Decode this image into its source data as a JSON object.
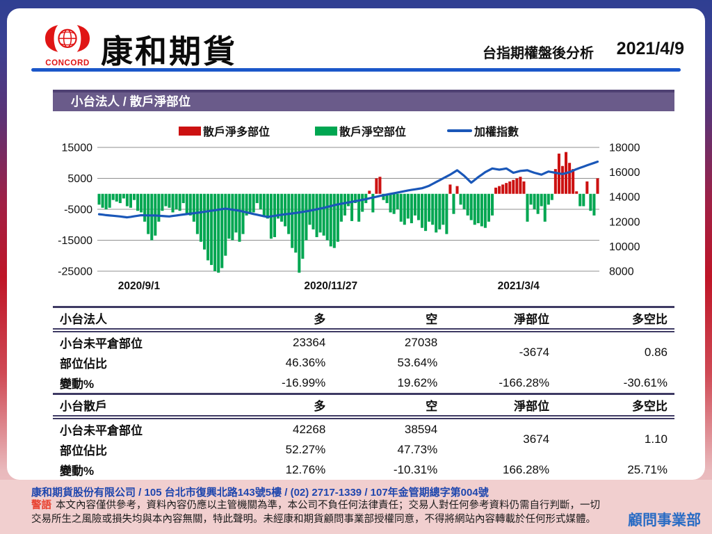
{
  "header": {
    "brand": "康和期貨",
    "logo_text": "CONCORD",
    "subtitle": "台指期權盤後分析",
    "date": "2021/4/9"
  },
  "banner": {
    "title": "小台法人 / 散戶淨部位"
  },
  "chart_data": {
    "type": "bar",
    "subtype": "dual-axis bar + line combo",
    "legend": [
      {
        "label": "散戶淨多部位",
        "type": "bar",
        "color": "#cc1111"
      },
      {
        "label": "散戶淨空部位",
        "type": "bar",
        "color": "#00a651"
      },
      {
        "label": "加權指數",
        "type": "line",
        "color": "#1a57b8"
      }
    ],
    "left_axis": {
      "ticks": [
        15000,
        5000,
        -5000,
        -15000,
        -25000
      ],
      "min": -25000,
      "max": 15000
    },
    "right_axis": {
      "ticks": [
        18000,
        16000,
        14000,
        12000,
        10000,
        8000
      ],
      "min": 8000,
      "max": 18000
    },
    "x_ticks": [
      {
        "label": "2020/9/1",
        "pos": 0.083
      },
      {
        "label": "2020/11/27",
        "pos": 0.465
      },
      {
        "label": "2021/3/4",
        "pos": 0.839
      }
    ],
    "grid": true,
    "bars": [
      -3500,
      -4500,
      -5000,
      -4500,
      -2000,
      -2500,
      -3000,
      -1500,
      -4000,
      -4500,
      -2000,
      -5500,
      -6000,
      -9000,
      -13000,
      -15000,
      -13500,
      -9000,
      -5500,
      -4000,
      -4500,
      -6000,
      -5000,
      -5500,
      -3000,
      -6500,
      -7000,
      -9000,
      -13000,
      -15500,
      -18000,
      -21500,
      -23000,
      -25000,
      -25500,
      -24000,
      -20000,
      -14500,
      -15000,
      -12500,
      -15500,
      -13000,
      -7000,
      -6500,
      -6000,
      -3000,
      -5000,
      -7500,
      -8000,
      -14500,
      -14000,
      -8000,
      -9000,
      -10500,
      -13000,
      -17500,
      -19000,
      -25500,
      -21000,
      -15000,
      -10000,
      -11500,
      -14000,
      -12500,
      -13500,
      -15000,
      -17000,
      -17500,
      -15500,
      -9000,
      -7000,
      -4000,
      -8800,
      -3000,
      -9000,
      -5800,
      -3000,
      1000,
      -6000,
      5000,
      5500,
      -2000,
      -3000,
      -6000,
      -6500,
      -5000,
      -9000,
      -10000,
      -8000,
      -9500,
      -7000,
      -8500,
      -11000,
      -12000,
      -9000,
      -10000,
      -12500,
      -11500,
      -10000,
      -13000,
      3000,
      -6500,
      2500,
      -3500,
      -5000,
      -7000,
      -8500,
      -10000,
      -9500,
      -10500,
      -11000,
      -9000,
      -7000,
      2000,
      2500,
      3000,
      3500,
      4000,
      4500,
      5000,
      5500,
      4000,
      -9000,
      -3500,
      -5000,
      -6500,
      -4000,
      -9000,
      -3500,
      -2000,
      8000,
      13000,
      9000,
      13500,
      10000,
      8000,
      800,
      -4000,
      -4000,
      4000,
      -5500,
      -7000,
      5000
    ],
    "line": [
      12600,
      12570,
      12530,
      12500,
      12480,
      12450,
      12420,
      12380,
      12350,
      12390,
      12430,
      12480,
      12520,
      12510,
      12505,
      12500,
      12500,
      12480,
      12460,
      12440,
      12420,
      12460,
      12500,
      12540,
      12580,
      12615,
      12650,
      12685,
      12720,
      12760,
      12800,
      12840,
      12880,
      12920,
      12965,
      13010,
      13050,
      13010,
      12965,
      12925,
      12880,
      12815,
      12750,
      12685,
      12620,
      12560,
      12500,
      12440,
      12380,
      12425,
      12470,
      12515,
      12560,
      12595,
      12630,
      12665,
      12700,
      12745,
      12790,
      12835,
      12880,
      12940,
      13000,
      13060,
      13120,
      13190,
      13260,
      13330,
      13400,
      13450,
      13500,
      13550,
      13600,
      13655,
      13710,
      13765,
      13820,
      13885,
      13950,
      14015,
      14080,
      14135,
      14190,
      14245,
      14300,
      14355,
      14410,
      14465,
      14520,
      14565,
      14610,
      14655,
      14700,
      14800,
      14900,
      15050,
      15200,
      15350,
      15500,
      15650,
      15800,
      15975,
      16150,
      15925,
      15700,
      15425,
      15150,
      15375,
      15600,
      15800,
      16000,
      16150,
      16300,
      16250,
      16200,
      16250,
      16300,
      16125,
      15950,
      16025,
      16100,
      16125,
      16150,
      16050,
      15950,
      15875,
      15800,
      15925,
      16050,
      16000,
      15950,
      15900,
      15850,
      15925,
      16000,
      16125,
      16250,
      16350,
      16450,
      16550,
      16650,
      16750,
      16850
    ]
  },
  "tables": [
    {
      "header": [
        "小台法人",
        "多",
        "空",
        "淨部位",
        "多空比"
      ],
      "net": "-3674",
      "ratio": "0.86",
      "rows": [
        {
          "label": "小台未平倉部位",
          "long": "23364",
          "short": "27038"
        },
        {
          "label": "部位佔比",
          "long": "46.36%",
          "short": "53.64%"
        },
        {
          "label": "變動%",
          "long": "-16.99%",
          "short": "19.62%",
          "net": "-166.28%",
          "ratio": "-30.61%"
        }
      ]
    },
    {
      "header": [
        "小台散戶",
        "多",
        "空",
        "淨部位",
        "多空比"
      ],
      "net": "3674",
      "ratio": "1.10",
      "rows": [
        {
          "label": "小台未平倉部位",
          "long": "42268",
          "short": "38594"
        },
        {
          "label": "部位佔比",
          "long": "52.27%",
          "short": "47.73%"
        },
        {
          "label": "變動%",
          "long": "12.76%",
          "short": "-10.31%",
          "net": "166.28%",
          "ratio": "25.71%"
        }
      ]
    }
  ],
  "footer": {
    "company_line": "康和期貨股份有限公司 / 105 台北市復興北路143號5樓 / (02) 2717-1339 / 107年金管期總字第004號",
    "warning_label": "警語",
    "warning_text": "本文內容僅供參考，資料內容仍應以主管機關為準，本公司不負任何法律責任；交易人對任何參考資料仍需自行判斷，一切交易所生之風險或損失均與本內容無關，特此聲明。未經康和期貨顧問事業部授權同意，不得將網站內容轉載於任何形式媒體。",
    "department": "顧問事業部"
  },
  "colors": {
    "accent_blue": "#1b57c9",
    "banner_purple": "#6a5b8a",
    "table_rule": "#3e3a63",
    "footer_pink": "#f1cfcf",
    "bar_long_red": "#cc1111",
    "bar_short_green": "#00a651",
    "index_line_blue": "#1a57b8"
  }
}
